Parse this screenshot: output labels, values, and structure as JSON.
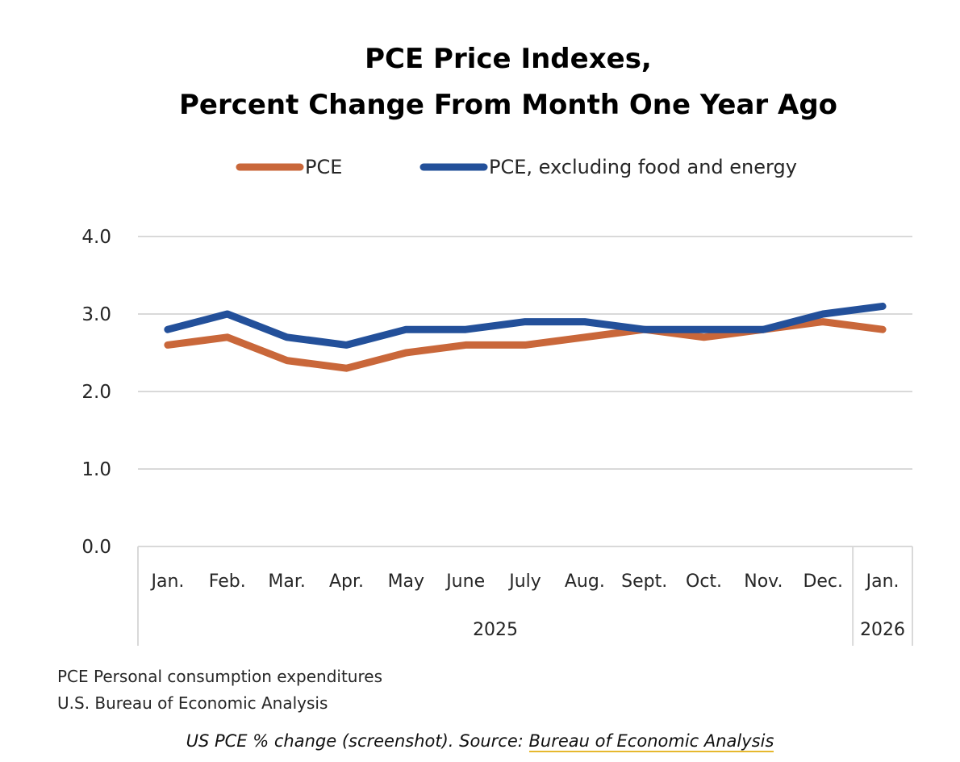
{
  "chart_data": {
    "type": "line",
    "title": [
      "PCE Price Indexes,",
      "Percent Change From Month One Year Ago"
    ],
    "xlabel": "",
    "ylabel": "",
    "ylim": [
      0,
      4
    ],
    "yticks": [
      "4.0",
      "3.0",
      "2.0",
      "1.0",
      "0.0"
    ],
    "ytick_values": [
      4,
      3,
      2,
      1,
      0
    ],
    "grid": true,
    "legend_position": "top",
    "categories": [
      "Jan.",
      "Feb.",
      "Mar.",
      "Apr.",
      "May",
      "June",
      "July",
      "Aug.",
      "Sept.",
      "Oct.",
      "Nov.",
      "Dec.",
      "Jan."
    ],
    "year_groups": [
      {
        "label": "2025",
        "count": 12
      },
      {
        "label": "2026",
        "count": 1
      }
    ],
    "series": [
      {
        "name": "PCE",
        "color": "#c9673a",
        "values": [
          2.6,
          2.7,
          2.4,
          2.3,
          2.5,
          2.6,
          2.6,
          2.7,
          2.8,
          2.7,
          2.8,
          2.9,
          2.8
        ]
      },
      {
        "name": "PCE, excluding food and energy",
        "color": "#23509a",
        "values": [
          2.8,
          3.0,
          2.7,
          2.6,
          2.8,
          2.8,
          2.9,
          2.9,
          2.8,
          2.8,
          2.8,
          3.0,
          3.1
        ]
      }
    ]
  },
  "notes": [
    "PCE Personal consumption expenditures",
    "U.S. Bureau of Economic Analysis"
  ],
  "caption": {
    "text": "US PCE % change (screenshot). Source: ",
    "link_text": "Bureau of Economic Analysis"
  }
}
